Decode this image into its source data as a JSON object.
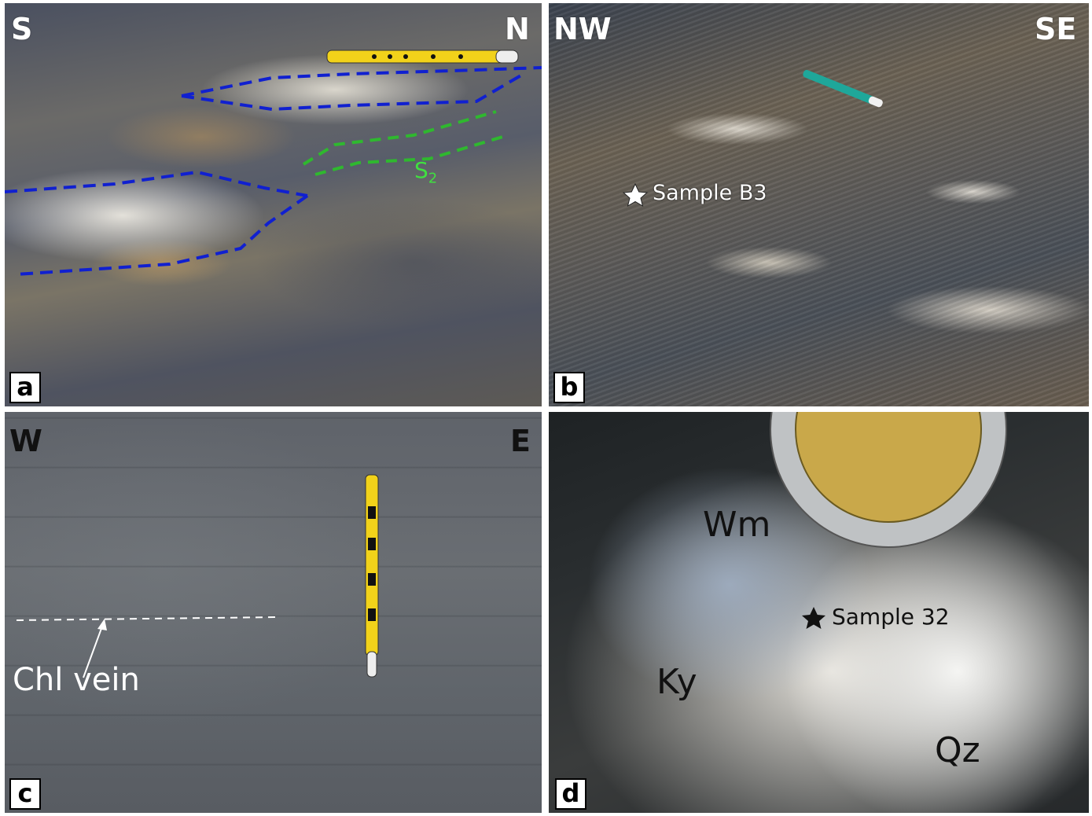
{
  "panels": {
    "a": {
      "label": "a",
      "dir_left": "S",
      "dir_right": "N",
      "foliation": {
        "main": "S",
        "sub": "2"
      }
    },
    "b": {
      "label": "b",
      "dir_left": "NW",
      "dir_right": "SE",
      "sample": "Sample B3"
    },
    "c": {
      "label": "c",
      "dir_left": "W",
      "dir_right": "E",
      "vein": "Chl vein"
    },
    "d": {
      "label": "d",
      "sample": "Sample 32",
      "minerals": {
        "wm": "Wm",
        "ky": "Ky",
        "qz": "Qz"
      }
    }
  },
  "colors": {
    "vein_outline": "#1020d0",
    "foliation": "#2fb82f",
    "foliation_text": "#40e040"
  }
}
